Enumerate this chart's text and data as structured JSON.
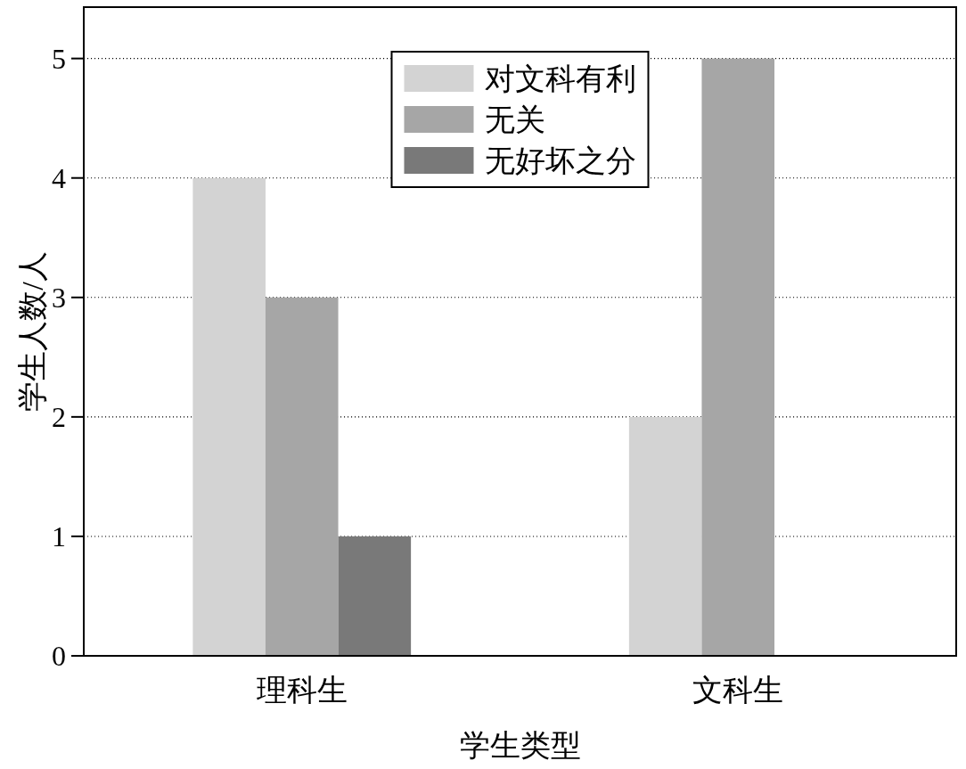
{
  "chart_data": {
    "type": "bar",
    "xlabel": "学生类型",
    "ylabel": "学生人数/人",
    "categories": [
      "理科生",
      "文科生"
    ],
    "series": [
      {
        "name": "对文科有利",
        "color": "#d3d3d3",
        "values": [
          4,
          2
        ]
      },
      {
        "name": "无关",
        "color": "#a6a6a6",
        "values": [
          3,
          5
        ]
      },
      {
        "name": "无好坏之分",
        "color": "#797979",
        "values": [
          1,
          0
        ]
      }
    ],
    "ylim": [
      0,
      5.43
    ],
    "yticks": [
      0,
      1,
      2,
      3,
      4,
      5
    ],
    "grid": "y",
    "legend": "top"
  }
}
